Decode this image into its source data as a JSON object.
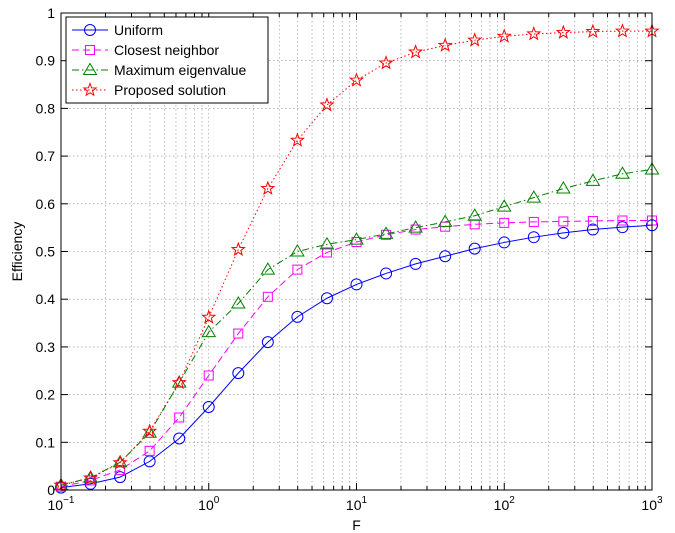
{
  "chart_data": {
    "type": "line",
    "xlabel": "F",
    "ylabel": "Efficiency",
    "xscale": "log",
    "xlim": [
      0.1,
      1000
    ],
    "ylim": [
      0,
      1
    ],
    "grid": true,
    "legend_position": "top-left",
    "x_ticks": [
      {
        "base": "10",
        "exp": "−1"
      },
      {
        "base": "10",
        "exp": "0"
      },
      {
        "base": "10",
        "exp": "1"
      },
      {
        "base": "10",
        "exp": "2"
      },
      {
        "base": "10",
        "exp": "3"
      }
    ],
    "y_ticks": [
      "0",
      "0.1",
      "0.2",
      "0.3",
      "0.4",
      "0.5",
      "0.6",
      "0.7",
      "0.8",
      "0.9",
      "1"
    ],
    "x": [
      0.1,
      0.1585,
      0.2512,
      0.3981,
      0.631,
      1.0,
      1.585,
      2.512,
      3.981,
      6.31,
      10,
      15.85,
      25.12,
      39.81,
      63.1,
      100,
      158.5,
      251.2,
      398.1,
      631,
      1000
    ],
    "series": [
      {
        "name": "Uniform",
        "color": "#0000ff",
        "dash": "solid",
        "marker": "circle",
        "values": [
          0.005,
          0.013,
          0.027,
          0.06,
          0.108,
          0.174,
          0.245,
          0.31,
          0.363,
          0.402,
          0.431,
          0.454,
          0.474,
          0.49,
          0.506,
          0.519,
          0.53,
          0.539,
          0.546,
          0.551,
          0.555
        ]
      },
      {
        "name": "Closest neighbor",
        "color": "#ff00ff",
        "dash": "dashed",
        "marker": "square",
        "values": [
          0.007,
          0.02,
          0.042,
          0.082,
          0.152,
          0.24,
          0.328,
          0.405,
          0.462,
          0.498,
          0.52,
          0.535,
          0.546,
          0.552,
          0.557,
          0.56,
          0.562,
          0.563,
          0.564,
          0.565,
          0.565
        ]
      },
      {
        "name": "Maximum eigenvalue",
        "color": "#008000",
        "dash": "dashdot",
        "marker": "triangle",
        "values": [
          0.01,
          0.026,
          0.058,
          0.12,
          0.225,
          0.331,
          0.391,
          0.462,
          0.5,
          0.515,
          0.525,
          0.537,
          0.55,
          0.562,
          0.575,
          0.594,
          0.613,
          0.632,
          0.648,
          0.663,
          0.672
        ]
      },
      {
        "name": "Proposed solution",
        "color": "#ff0000",
        "dash": "dotted",
        "marker": "star",
        "values": [
          0.01,
          0.025,
          0.057,
          0.123,
          0.225,
          0.362,
          0.504,
          0.632,
          0.733,
          0.807,
          0.859,
          0.895,
          0.918,
          0.932,
          0.943,
          0.951,
          0.956,
          0.959,
          0.961,
          0.962,
          0.962
        ]
      }
    ]
  }
}
